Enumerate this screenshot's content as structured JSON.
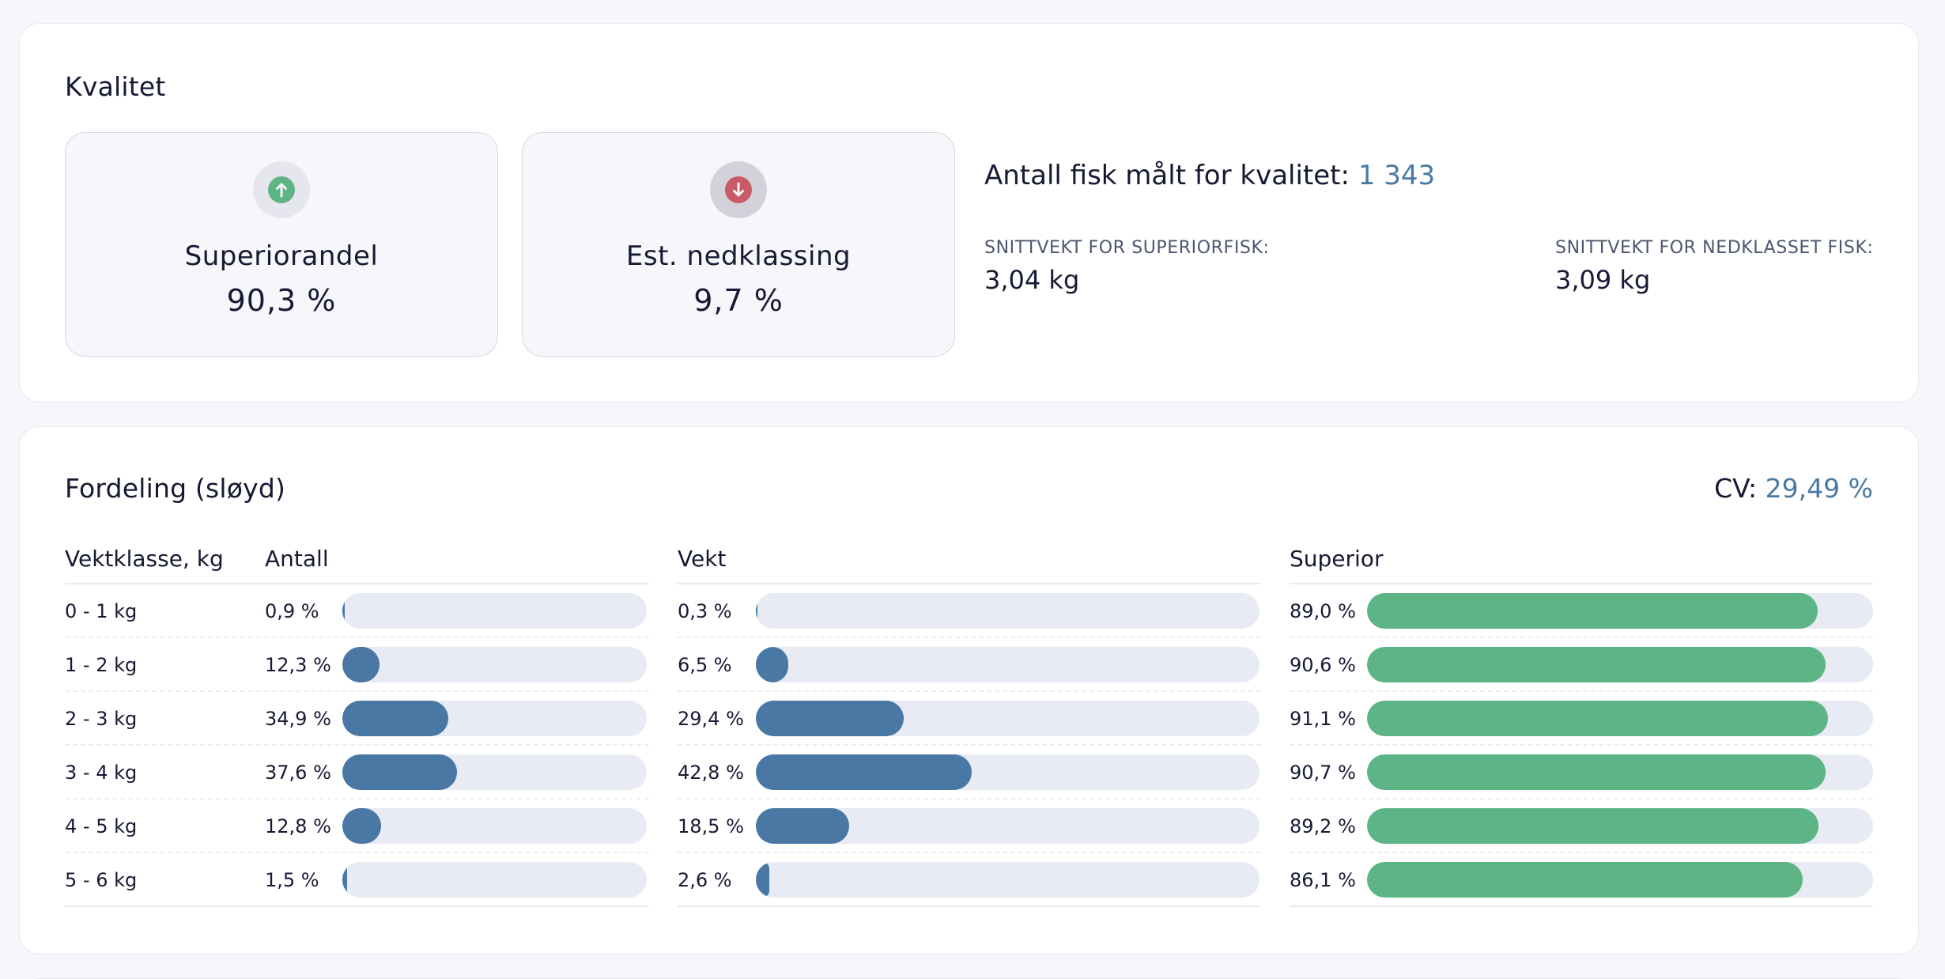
{
  "quality": {
    "title": "Kvalitet",
    "kpis": [
      {
        "label": "Superiorandel",
        "value": "90,3 %",
        "icon": "arrow-up-circle-icon",
        "color": "#5db585"
      },
      {
        "label": "Est. nedklassing",
        "value": "9,7 %",
        "icon": "arrow-down-circle-icon",
        "color": "#c95a67"
      }
    ],
    "count_label": "Antall fisk målt for kvalitet:",
    "count_value": "1 343",
    "stats": [
      {
        "label": "Snittvekt for superiorfisk:",
        "value": "3,04 kg"
      },
      {
        "label": "Snittvekt for nedklasset fisk:",
        "value": "3,09 kg"
      }
    ]
  },
  "distribution": {
    "title": "Fordeling (sløyd)",
    "cv_label": "CV:",
    "cv_value": "29,49 %",
    "headers": {
      "weight_class": "Vektklasse, kg",
      "count": "Antall",
      "weight": "Vekt",
      "superior": "Superior"
    },
    "colors": {
      "accent": "#4878a3",
      "superior": "#5db585",
      "track": "#e8eaf4"
    }
  },
  "chart_data": {
    "type": "table",
    "title": "Fordeling (sløyd)",
    "columns": [
      "Vektklasse, kg",
      "Antall",
      "Vekt",
      "Superior"
    ],
    "categories": [
      "0 - 1 kg",
      "1 - 2 kg",
      "2 - 3 kg",
      "3 - 4 kg",
      "4 - 5 kg",
      "5 - 6 kg"
    ],
    "series": [
      {
        "name": "Antall",
        "values": [
          0.9,
          12.3,
          34.9,
          37.6,
          12.8,
          1.5
        ],
        "labels": [
          "0,9 %",
          "12,3 %",
          "34,9 %",
          "37,6 %",
          "12,8 %",
          "1,5 %"
        ],
        "unit": "%"
      },
      {
        "name": "Vekt",
        "values": [
          0.3,
          6.5,
          29.4,
          42.8,
          18.5,
          2.6
        ],
        "labels": [
          "0,3 %",
          "6,5 %",
          "29,4 %",
          "42,8 %",
          "18,5 %",
          "2,6 %"
        ],
        "unit": "%"
      },
      {
        "name": "Superior",
        "values": [
          89.0,
          90.6,
          91.1,
          90.7,
          89.2,
          86.1
        ],
        "labels": [
          "89,0 %",
          "90,6 %",
          "91,1 %",
          "90,7 %",
          "89,2 %",
          "86,1 %"
        ],
        "unit": "%"
      }
    ],
    "ylim": [
      0,
      100
    ]
  }
}
